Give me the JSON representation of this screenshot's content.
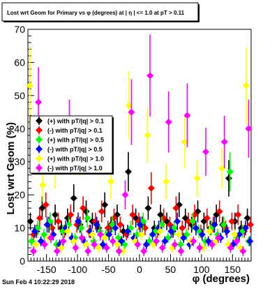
{
  "chart_data": {
    "type": "scatter",
    "title": "Lost wrt Geom for Primary vs φ (degrees) at | η | <= 1.0 at pT > 0.11",
    "xlabel": "φ (degrees)",
    "ylabel": "Lost wrt Geom (%)",
    "xlim": [
      -180,
      180
    ],
    "ylim": [
      0,
      70
    ],
    "x_ticks": [
      -150,
      -100,
      -50,
      0,
      50,
      100,
      150
    ],
    "y_ticks": [
      0,
      10,
      20,
      30,
      40,
      50,
      60,
      70
    ],
    "legend_position": "left-middle",
    "series": [
      {
        "name": "(+) with pT/|q| > 0.1",
        "color": "#000000",
        "points": [
          [
            -176,
            12
          ],
          [
            -166,
            9
          ],
          [
            -157,
            16
          ],
          [
            -146,
            11
          ],
          [
            -136,
            14
          ],
          [
            -126,
            10
          ],
          [
            -116,
            13
          ],
          [
            -106,
            19
          ],
          [
            -96,
            11
          ],
          [
            -86,
            15
          ],
          [
            -76,
            12
          ],
          [
            -66,
            10
          ],
          [
            -56,
            17
          ],
          [
            -46,
            11
          ],
          [
            -36,
            14
          ],
          [
            -26,
            9
          ],
          [
            -18,
            27
          ],
          [
            -6,
            13
          ],
          [
            4,
            11
          ],
          [
            14,
            16
          ],
          [
            24,
            10
          ],
          [
            34,
            14
          ],
          [
            44,
            12
          ],
          [
            54,
            9
          ],
          [
            64,
            17
          ],
          [
            74,
            13
          ],
          [
            84,
            11
          ],
          [
            94,
            15
          ],
          [
            104,
            12
          ],
          [
            114,
            10
          ],
          [
            124,
            14
          ],
          [
            134,
            11
          ],
          [
            144,
            25
          ],
          [
            154,
            12
          ],
          [
            164,
            10
          ],
          [
            174,
            13
          ]
        ]
      },
      {
        "name": "(-) with pT/|q| > 0.1",
        "color": "#ff0000",
        "points": [
          [
            -171,
            8
          ],
          [
            -161,
            13
          ],
          [
            -151,
            17
          ],
          [
            -141,
            10
          ],
          [
            -131,
            12
          ],
          [
            -121,
            9
          ],
          [
            -111,
            14
          ],
          [
            -101,
            11
          ],
          [
            -91,
            16
          ],
          [
            -81,
            9
          ],
          [
            -71,
            12
          ],
          [
            -61,
            15
          ],
          [
            -51,
            10
          ],
          [
            -41,
            13
          ],
          [
            -31,
            11
          ],
          [
            -21,
            8
          ],
          [
            -11,
            14
          ],
          [
            -1,
            12
          ],
          [
            9,
            10
          ],
          [
            19,
            22
          ],
          [
            29,
            9
          ],
          [
            39,
            13
          ],
          [
            49,
            11
          ],
          [
            59,
            16
          ],
          [
            69,
            10
          ],
          [
            79,
            12
          ],
          [
            89,
            14
          ],
          [
            99,
            9
          ],
          [
            109,
            13
          ],
          [
            119,
            11
          ],
          [
            129,
            15
          ],
          [
            139,
            10
          ],
          [
            149,
            12
          ],
          [
            159,
            14
          ],
          [
            169,
            9
          ],
          [
            179,
            11
          ]
        ]
      },
      {
        "name": "(+) with pT/|q| > 0.5",
        "color": "#00ff00",
        "points": [
          [
            -174,
            6
          ],
          [
            -164,
            10
          ],
          [
            -154,
            8
          ],
          [
            -144,
            12
          ],
          [
            -134,
            5
          ],
          [
            -124,
            9
          ],
          [
            -114,
            11
          ],
          [
            -104,
            7
          ],
          [
            -94,
            10
          ],
          [
            -84,
            13
          ],
          [
            -74,
            6
          ],
          [
            -64,
            9
          ],
          [
            -54,
            8
          ],
          [
            -44,
            11
          ],
          [
            -34,
            7
          ],
          [
            -24,
            5
          ],
          [
            -14,
            10
          ],
          [
            -4,
            8
          ],
          [
            6,
            12
          ],
          [
            16,
            6
          ],
          [
            26,
            9
          ],
          [
            36,
            11
          ],
          [
            46,
            7
          ],
          [
            56,
            10
          ],
          [
            66,
            5
          ],
          [
            76,
            8
          ],
          [
            86,
            12
          ],
          [
            96,
            9
          ],
          [
            106,
            6
          ],
          [
            116,
            10
          ],
          [
            126,
            8
          ],
          [
            136,
            11
          ],
          [
            146,
            27
          ],
          [
            156,
            7
          ],
          [
            166,
            9
          ],
          [
            176,
            6
          ]
        ]
      },
      {
        "name": "(-) with pT/|q| > 0.5",
        "color": "#0000ff",
        "points": [
          [
            -169,
            9
          ],
          [
            -159,
            6
          ],
          [
            -149,
            11
          ],
          [
            -139,
            8
          ],
          [
            -129,
            5
          ],
          [
            -119,
            10
          ],
          [
            -109,
            7
          ],
          [
            -99,
            12
          ],
          [
            -89,
            6
          ],
          [
            -79,
            9
          ],
          [
            -69,
            11
          ],
          [
            -59,
            5
          ],
          [
            -49,
            8
          ],
          [
            -39,
            10
          ],
          [
            -29,
            6
          ],
          [
            -19,
            9
          ],
          [
            -9,
            7
          ],
          [
            1,
            11
          ],
          [
            11,
            5
          ],
          [
            21,
            8
          ],
          [
            31,
            10
          ],
          [
            41,
            6
          ],
          [
            51,
            9
          ],
          [
            61,
            12
          ],
          [
            71,
            7
          ],
          [
            81,
            5
          ],
          [
            91,
            10
          ],
          [
            101,
            8
          ],
          [
            111,
            6
          ],
          [
            121,
            11
          ],
          [
            131,
            7
          ],
          [
            141,
            9
          ],
          [
            151,
            5
          ],
          [
            161,
            8
          ],
          [
            171,
            10
          ],
          [
            178,
            6
          ]
        ]
      },
      {
        "name": "(+) with pT/|q| > 1.0",
        "color": "#ffff00",
        "points": [
          [
            -177,
            53
          ],
          [
            -167,
            5
          ],
          [
            -156,
            23
          ],
          [
            -146,
            7
          ],
          [
            -136,
            28
          ],
          [
            -126,
            4
          ],
          [
            -116,
            9
          ],
          [
            -106,
            6
          ],
          [
            -96,
            33
          ],
          [
            -86,
            5
          ],
          [
            -76,
            8
          ],
          [
            -66,
            4
          ],
          [
            -56,
            7
          ],
          [
            -46,
            24
          ],
          [
            -36,
            5
          ],
          [
            -26,
            3
          ],
          [
            -17,
            47
          ],
          [
            -7,
            6
          ],
          [
            3,
            8
          ],
          [
            13,
            38
          ],
          [
            23,
            5
          ],
          [
            33,
            9
          ],
          [
            43,
            24
          ],
          [
            53,
            4
          ],
          [
            63,
            8
          ],
          [
            73,
            36
          ],
          [
            83,
            6
          ],
          [
            93,
            25
          ],
          [
            103,
            4
          ],
          [
            113,
            9
          ],
          [
            123,
            6
          ],
          [
            133,
            28
          ],
          [
            143,
            5
          ],
          [
            153,
            8
          ],
          [
            163,
            4
          ],
          [
            172,
            53
          ]
        ]
      },
      {
        "name": "(-) with pT/|q| > 1.0",
        "color": "#ff00ff",
        "points": [
          [
            -171,
            3
          ],
          [
            -163,
            48
          ],
          [
            -153,
            5
          ],
          [
            -143,
            7
          ],
          [
            -133,
            3
          ],
          [
            -123,
            6
          ],
          [
            -113,
            40
          ],
          [
            -103,
            4
          ],
          [
            -93,
            7
          ],
          [
            -83,
            3
          ],
          [
            -73,
            5
          ],
          [
            -63,
            8
          ],
          [
            -53,
            4
          ],
          [
            -43,
            6
          ],
          [
            -33,
            3
          ],
          [
            -23,
            20
          ],
          [
            -13,
            45
          ],
          [
            -3,
            5
          ],
          [
            7,
            3
          ],
          [
            17,
            56
          ],
          [
            27,
            6
          ],
          [
            37,
            4
          ],
          [
            47,
            42
          ],
          [
            57,
            5
          ],
          [
            67,
            3
          ],
          [
            77,
            44
          ],
          [
            87,
            6
          ],
          [
            97,
            4
          ],
          [
            107,
            33
          ],
          [
            117,
            5
          ],
          [
            127,
            7
          ],
          [
            137,
            36
          ],
          [
            147,
            4
          ],
          [
            157,
            6
          ],
          [
            167,
            3
          ],
          [
            176,
            40
          ]
        ]
      }
    ]
  },
  "footer": {
    "timestamp": "Sun Feb  4 10:22:29 2018"
  }
}
